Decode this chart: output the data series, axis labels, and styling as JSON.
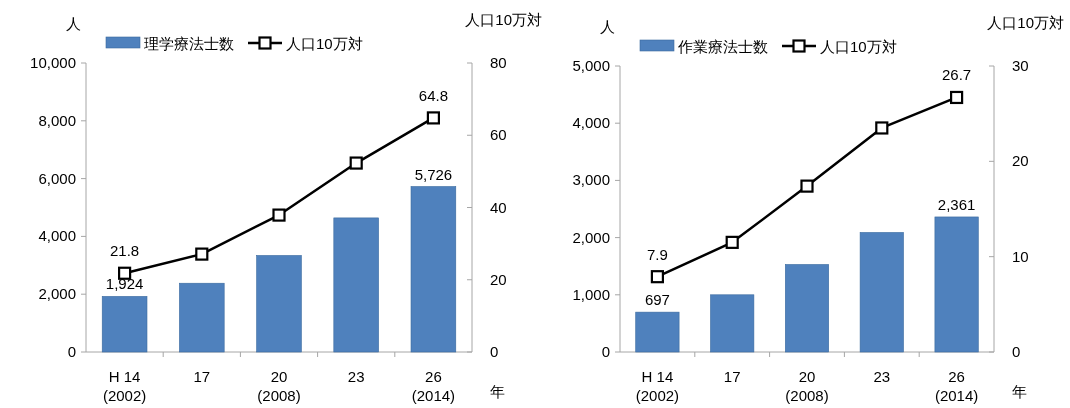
{
  "chart_data": [
    {
      "type": "bar",
      "categories": [
        "H 14\n(2002)",
        "17",
        "20\n(2008)",
        "23",
        "26\n(2014)"
      ],
      "ylabel": "人",
      "y2label": "人口10万対",
      "xlabel": "年",
      "ylim": [
        0,
        10000
      ],
      "yticks": [
        {
          "value": 0,
          "label": "0"
        },
        {
          "value": 2000,
          "label": "2,000"
        },
        {
          "value": 4000,
          "label": "4,000"
        },
        {
          "value": 6000,
          "label": "6,000"
        },
        {
          "value": 8000,
          "label": "8,000"
        },
        {
          "value": 10000,
          "label": "10,000"
        }
      ],
      "y2lim": [
        0,
        80
      ],
      "y2ticks": [
        0,
        20,
        40,
        60,
        80
      ],
      "legend": "top",
      "grid": false,
      "series": [
        {
          "name": "理学療法士数",
          "color": "#4f81bd",
          "values": [
            1924,
            2380,
            3340,
            4640,
            5726
          ],
          "value_labels": [
            "1,924",
            null,
            null,
            null,
            "5,726"
          ]
        },
        {
          "name": "人口10万対",
          "type": "line",
          "axis": "y2",
          "color": "#000000",
          "marker": "square",
          "values": [
            21.8,
            27.1,
            37.9,
            52.3,
            64.8
          ],
          "value_labels": [
            "21.8",
            null,
            null,
            null,
            "64.8"
          ]
        }
      ]
    },
    {
      "type": "bar",
      "categories": [
        "H 14\n(2002)",
        "17",
        "20\n(2008)",
        "23",
        "26\n(2014)"
      ],
      "ylabel": "人",
      "y2label": "人口10万対",
      "xlabel": "年",
      "ylim": [
        0,
        5000
      ],
      "yticks": [
        {
          "value": 0,
          "label": "0"
        },
        {
          "value": 1000,
          "label": "1,000"
        },
        {
          "value": 2000,
          "label": "2,000"
        },
        {
          "value": 3000,
          "label": "3,000"
        },
        {
          "value": 4000,
          "label": "4,000"
        },
        {
          "value": 5000,
          "label": "5,000"
        }
      ],
      "y2lim": [
        0,
        30
      ],
      "y2ticks": [
        0,
        10,
        20,
        30
      ],
      "legend": "top",
      "grid": false,
      "series": [
        {
          "name": "作業療法士数",
          "color": "#4f81bd",
          "values": [
            697,
            1000,
            1530,
            2090,
            2361
          ],
          "value_labels": [
            "697",
            null,
            null,
            null,
            "2,361"
          ]
        },
        {
          "name": "人口10万対",
          "type": "line",
          "axis": "y2",
          "color": "#000000",
          "marker": "square",
          "values": [
            7.9,
            11.5,
            17.4,
            23.5,
            26.7
          ],
          "value_labels": [
            "7.9",
            null,
            null,
            null,
            "26.7"
          ]
        }
      ]
    }
  ]
}
